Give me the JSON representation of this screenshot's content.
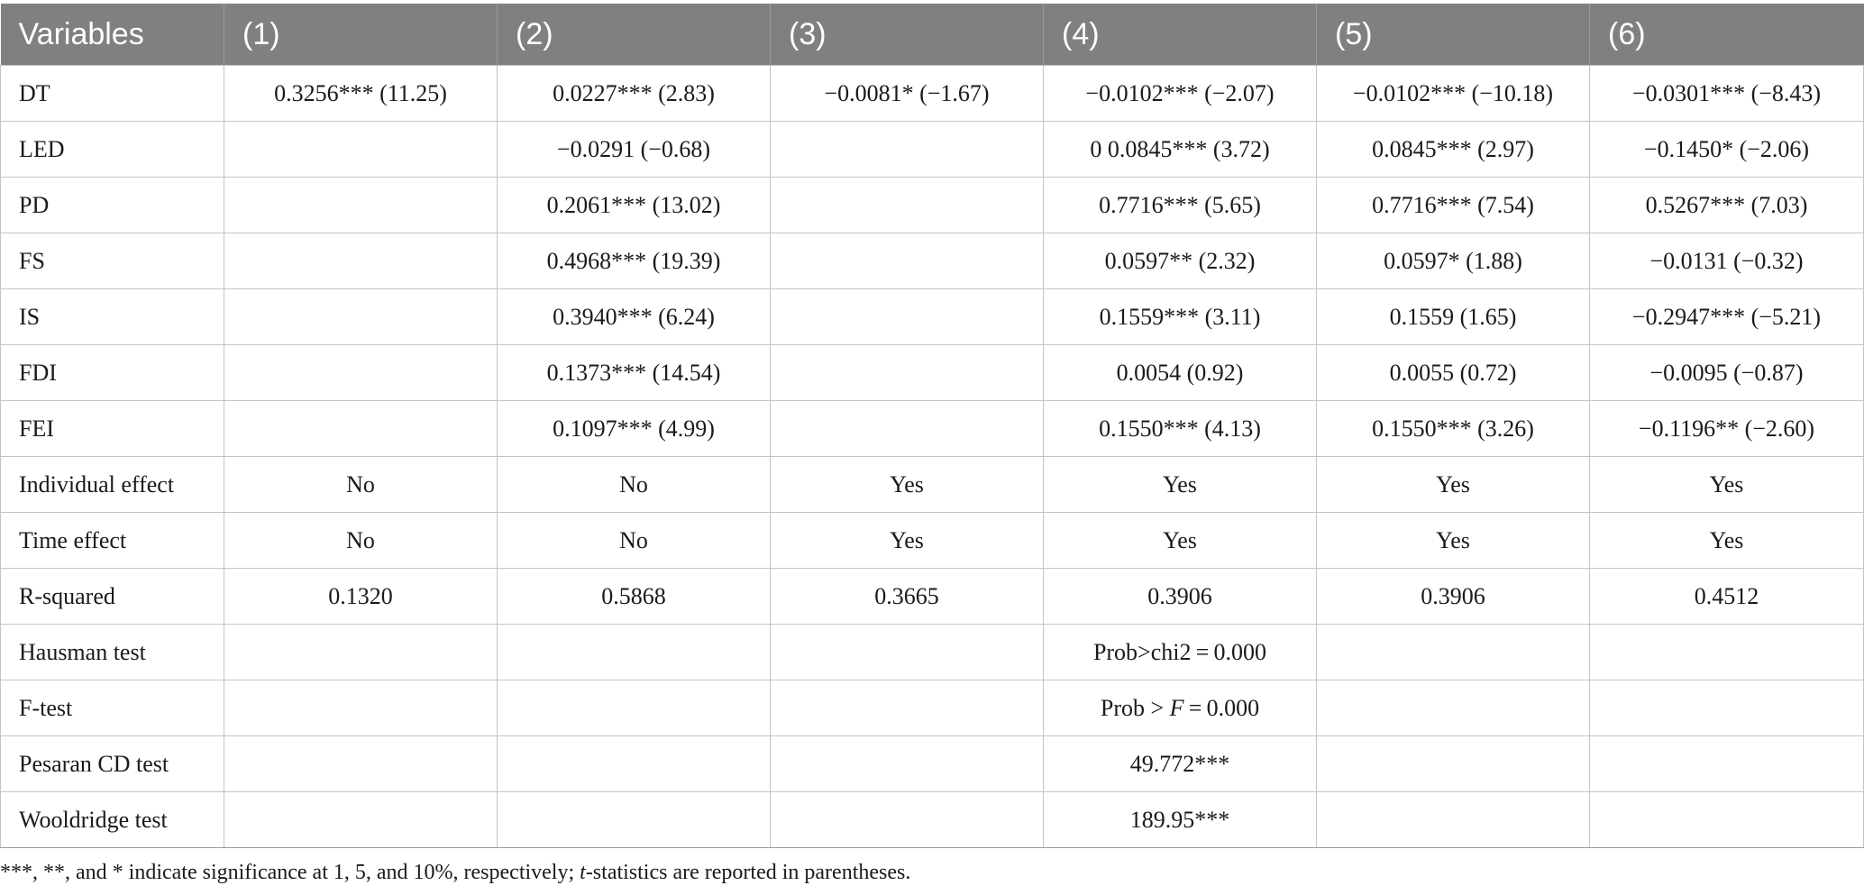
{
  "table": {
    "headers": [
      "Variables",
      "(1)",
      "(2)",
      "(3)",
      "(4)",
      "(5)",
      "(6)"
    ],
    "rows": [
      {
        "label": "DT",
        "cells": [
          "0.3256*** (11.25)",
          "0.0227*** (2.83)",
          "−0.0081* (−1.67)",
          "−0.0102*** (−2.07)",
          "−0.0102*** (−10.18)",
          "−0.0301*** (−8.43)"
        ]
      },
      {
        "label": "LED",
        "cells": [
          "",
          "−0.0291 (−0.68)",
          "",
          "0 0.0845*** (3.72)",
          "0.0845*** (2.97)",
          "−0.1450* (−2.06)"
        ]
      },
      {
        "label": "PD",
        "cells": [
          "",
          "0.2061*** (13.02)",
          "",
          "0.7716*** (5.65)",
          "0.7716*** (7.54)",
          "0.5267*** (7.03)"
        ]
      },
      {
        "label": "FS",
        "cells": [
          "",
          "0.4968*** (19.39)",
          "",
          "0.0597** (2.32)",
          "0.0597* (1.88)",
          "−0.0131 (−0.32)"
        ]
      },
      {
        "label": "IS",
        "cells": [
          "",
          "0.3940*** (6.24)",
          "",
          "0.1559*** (3.11)",
          "0.1559 (1.65)",
          "−0.2947*** (−5.21)"
        ]
      },
      {
        "label": "FDI",
        "cells": [
          "",
          "0.1373*** (14.54)",
          "",
          "0.0054 (0.92)",
          "0.0055 (0.72)",
          "−0.0095 (−0.87)"
        ]
      },
      {
        "label": "FEI",
        "cells": [
          "",
          "0.1097*** (4.99)",
          "",
          "0.1550*** (4.13)",
          "0.1550*** (3.26)",
          "−0.1196** (−2.60)"
        ]
      },
      {
        "label": "Individual effect",
        "cells": [
          "No",
          "No",
          "Yes",
          "Yes",
          "Yes",
          "Yes"
        ]
      },
      {
        "label": "Time effect",
        "cells": [
          "No",
          "No",
          "Yes",
          "Yes",
          "Yes",
          "Yes"
        ]
      },
      {
        "label": "R-squared",
        "cells": [
          "0.1320",
          "0.5868",
          "0.3665",
          "0.3906",
          "0.3906",
          "0.4512"
        ]
      },
      {
        "label": "Hausman test",
        "cells": [
          "",
          "",
          "",
          "Prob>chi2 = 0.000",
          "",
          ""
        ]
      },
      {
        "label": "F-test",
        "cells": [
          "",
          "",
          "",
          "Prob > F = 0.000",
          "",
          ""
        ]
      },
      {
        "label": "Pesaran CD test",
        "cells": [
          "",
          "",
          "",
          "49.772***",
          "",
          ""
        ]
      },
      {
        "label": "Wooldridge test",
        "cells": [
          "",
          "",
          "",
          "189.95***",
          "",
          ""
        ]
      }
    ]
  },
  "note": {
    "part1": "***, **, and * indicate significance at 1, 5, and 10%, respectively; ",
    "italic": "t",
    "part2": "-statistics are reported in parentheses."
  }
}
